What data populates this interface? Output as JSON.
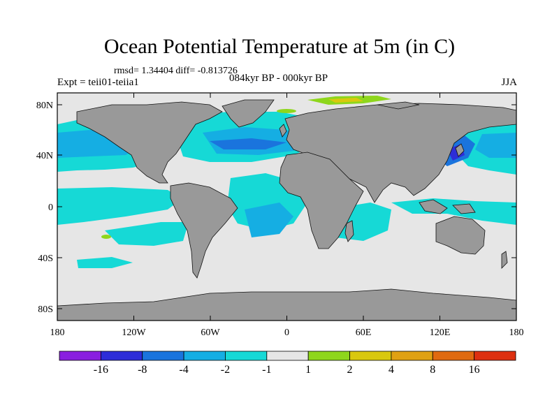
{
  "title": "Ocean Potential Temperature at 5m (in C)",
  "stats": "rmsd= 1.34404 diff= -0.813726",
  "experiment": "Expt = teii01-teiia1",
  "period": "084kyr BP - 000kyr BP",
  "season": "JJA",
  "axes": {
    "lon_ticks": [
      "180",
      "120W",
      "60W",
      "0",
      "60E",
      "120E",
      "180"
    ],
    "lat_ticks": [
      "80N",
      "40N",
      "0",
      "40S",
      "80S"
    ]
  },
  "colorbar": {
    "labels": [
      "-16",
      "-8",
      "-4",
      "-2",
      "-1",
      "1",
      "2",
      "4",
      "8",
      "16"
    ],
    "colors": [
      "#8a1fe0",
      "#2d2dd8",
      "#1a74dd",
      "#15aee3",
      "#16d9d6",
      "#e6e6e6",
      "#8ed61c",
      "#d9c80e",
      "#e0a113",
      "#e06a10",
      "#dd3010"
    ]
  },
  "map_colors": {
    "land": "#999999",
    "neutral": "#e6e6e6",
    "cool_minus1": "#16d9d6",
    "cool_minus2": "#15aee3",
    "cool_minus4": "#1a74dd",
    "warm_plus1": "#8ed61c",
    "warm_plus2": "#d9c80e"
  }
}
